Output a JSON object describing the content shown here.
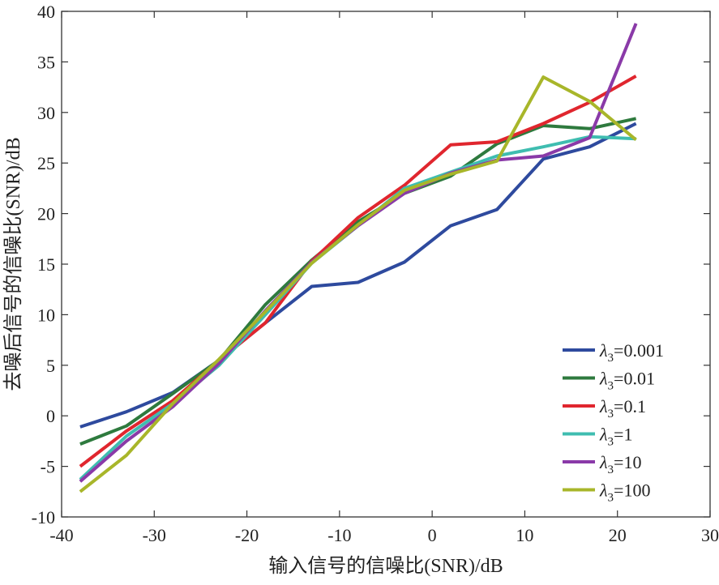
{
  "chart_data": {
    "type": "line",
    "title": "",
    "xlabel": "输入信号的信噪比(SNR)/dB",
    "ylabel": "去噪后信号的信噪比(SNR)/dB",
    "xlim": [
      -40,
      30
    ],
    "ylim": [
      -10,
      40
    ],
    "xticks": [
      -40,
      -30,
      -20,
      -10,
      0,
      10,
      20,
      30
    ],
    "yticks": [
      -10,
      -5,
      0,
      5,
      10,
      15,
      20,
      25,
      30,
      35,
      40
    ],
    "grid": false,
    "legend_position": "lower-right",
    "x": [
      -38,
      -33,
      -28,
      -23,
      -18,
      -13,
      -8,
      -3,
      2,
      7,
      12,
      17,
      22
    ],
    "series": [
      {
        "name": "λ3=0.001",
        "color": "#2e4a9e",
        "values": [
          -1.1,
          0.4,
          2.3,
          5.5,
          9.2,
          12.8,
          13.2,
          15.2,
          18.8,
          20.4,
          25.4,
          26.6,
          28.9
        ]
      },
      {
        "name": "λ3=0.01",
        "color": "#2e7a3e",
        "values": [
          -2.8,
          -1.0,
          2.2,
          5.5,
          11.0,
          15.4,
          19.2,
          22.0,
          23.7,
          26.9,
          28.7,
          28.4,
          29.4
        ]
      },
      {
        "name": "λ3=0.1",
        "color": "#e0262e",
        "values": [
          -5.0,
          -1.5,
          1.5,
          5.5,
          9.2,
          15.3,
          19.6,
          22.8,
          26.8,
          27.1,
          28.9,
          31.0,
          33.6
        ]
      },
      {
        "name": "λ3=1",
        "color": "#3fbdb0",
        "values": [
          -6.3,
          -2.0,
          1.2,
          5.0,
          10.0,
          15.1,
          18.8,
          22.5,
          24.1,
          25.7,
          26.6,
          27.6,
          27.4
        ]
      },
      {
        "name": "λ3=10",
        "color": "#8a3aa8",
        "values": [
          -6.5,
          -2.5,
          0.9,
          5.2,
          10.4,
          15.2,
          18.8,
          22.0,
          24.0,
          25.3,
          25.7,
          27.5,
          38.8
        ]
      },
      {
        "name": "λ3=100",
        "color": "#a8b62a",
        "values": [
          -7.5,
          -3.9,
          1.2,
          5.6,
          10.3,
          15.1,
          18.9,
          22.3,
          23.9,
          25.2,
          33.5,
          31.1,
          27.3
        ]
      }
    ],
    "legend_labels": [
      {
        "prefix": "λ",
        "sub": "3",
        "rest": "=0.001"
      },
      {
        "prefix": "λ",
        "sub": "3",
        "rest": "=0.01"
      },
      {
        "prefix": "λ",
        "sub": "3",
        "rest": "=0.1"
      },
      {
        "prefix": "λ",
        "sub": "3",
        "rest": "=1"
      },
      {
        "prefix": "λ",
        "sub": "3",
        "rest": "=10"
      },
      {
        "prefix": "λ",
        "sub": "3",
        "rest": "=100"
      }
    ]
  }
}
